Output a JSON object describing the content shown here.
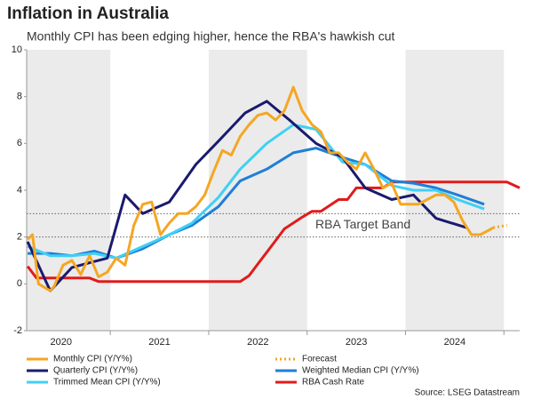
{
  "chart_data": {
    "type": "line",
    "title": "Inflation in Australia",
    "subtitle": "Monthly CPI has been edging higher, hence the RBA's hawkish cut",
    "source": "Source: LSEG Datastream",
    "annotation": "RBA Target Band",
    "reference_lines": [
      2,
      3
    ],
    "band_color": "#ebebeb",
    "xlim": [
      2020.15,
      2025.16
    ],
    "xticks": [
      {
        "value": 2020.5,
        "label": "2020"
      },
      {
        "value": 2021.5,
        "label": "2021"
      },
      {
        "value": 2022.5,
        "label": "2022"
      },
      {
        "value": 2023.5,
        "label": "2023"
      },
      {
        "value": 2024.5,
        "label": "2024"
      }
    ],
    "ylim": [
      -2,
      10
    ],
    "yticks": [
      -2,
      0,
      2,
      4,
      6,
      8,
      10
    ],
    "series": [
      {
        "name": "Monthly CPI (Y/Y%)",
        "color": "#f5a623",
        "x": [
          2020.16,
          2020.21,
          2020.27,
          2020.39,
          2020.43,
          2020.52,
          2020.61,
          2020.7,
          2020.79,
          2020.88,
          2020.97,
          2021.06,
          2021.15,
          2021.24,
          2021.33,
          2021.42,
          2021.51,
          2021.6,
          2021.69,
          2021.78,
          2021.87,
          2021.96,
          2022.05,
          2022.14,
          2022.23,
          2022.32,
          2022.41,
          2022.5,
          2022.59,
          2022.68,
          2022.77,
          2022.86,
          2022.95,
          2023.05,
          2023.14,
          2023.23,
          2023.32,
          2023.41,
          2023.5,
          2023.59,
          2023.68,
          2023.77,
          2023.86,
          2023.95,
          2024.04,
          2024.13,
          2024.22,
          2024.31,
          2024.4,
          2024.49,
          2024.58,
          2024.67,
          2024.76,
          2024.85,
          2024.89
        ],
        "values": [
          1.9,
          2.1,
          0.0,
          -0.3,
          -0.1,
          0.8,
          1.0,
          0.4,
          1.2,
          0.3,
          0.5,
          1.1,
          0.8,
          2.5,
          3.4,
          3.5,
          2.1,
          2.6,
          3.0,
          3.0,
          3.3,
          3.8,
          4.8,
          5.7,
          5.5,
          6.3,
          6.8,
          7.2,
          7.3,
          7.0,
          7.4,
          8.4,
          7.4,
          6.8,
          6.5,
          5.6,
          5.6,
          5.2,
          4.9,
          5.6,
          4.9,
          4.1,
          4.3,
          3.4,
          3.4,
          3.4,
          3.6,
          3.8,
          3.8,
          3.5,
          2.7,
          2.1,
          2.1,
          2.3,
          2.4
        ]
      },
      {
        "name": "Forecast",
        "color": "#f5a623",
        "dashed": true,
        "x": [
          2024.89,
          2025.03
        ],
        "values": [
          2.4,
          2.5
        ]
      },
      {
        "name": "Quarterly CPI (Y/Y%)",
        "color": "#1a1a6e",
        "x": [
          2020.16,
          2020.39,
          2020.61,
          2020.79,
          2020.97,
          2021.15,
          2021.33,
          2021.6,
          2021.87,
          2022.1,
          2022.37,
          2022.59,
          2022.82,
          2023.09,
          2023.36,
          2023.59,
          2023.86,
          2024.08,
          2024.31,
          2024.62
        ],
        "values": [
          1.8,
          -0.3,
          0.7,
          0.9,
          1.1,
          3.8,
          3.0,
          3.5,
          5.1,
          6.1,
          7.3,
          7.8,
          7.0,
          6.0,
          5.4,
          4.1,
          3.6,
          3.8,
          2.8,
          2.4
        ]
      },
      {
        "name": "Weighted Median CPI (Y/Y%)",
        "color": "#1e7fd8",
        "x": [
          2020.16,
          2020.39,
          2020.61,
          2020.84,
          2021.06,
          2021.33,
          2021.6,
          2021.83,
          2022.1,
          2022.32,
          2022.59,
          2022.86,
          2023.09,
          2023.36,
          2023.59,
          2023.86,
          2024.08,
          2024.31,
          2024.53,
          2024.8
        ],
        "values": [
          1.3,
          1.3,
          1.2,
          1.4,
          1.1,
          1.5,
          2.1,
          2.5,
          3.3,
          4.4,
          4.9,
          5.6,
          5.8,
          5.4,
          5.1,
          4.4,
          4.3,
          4.1,
          3.8,
          3.4
        ]
      },
      {
        "name": "Trimmed Mean CPI (Y/Y%)",
        "color": "#3fd0f5",
        "x": [
          2020.16,
          2020.39,
          2020.61,
          2020.84,
          2021.06,
          2021.33,
          2021.6,
          2021.83,
          2022.1,
          2022.32,
          2022.59,
          2022.86,
          2023.09,
          2023.36,
          2023.59,
          2023.86,
          2024.08,
          2024.31,
          2024.53,
          2024.8
        ],
        "values": [
          1.6,
          1.2,
          1.2,
          1.3,
          1.1,
          1.6,
          2.1,
          2.6,
          3.7,
          4.9,
          6.0,
          6.8,
          6.6,
          5.2,
          5.1,
          4.2,
          4.0,
          4.0,
          3.6,
          3.2
        ]
      },
      {
        "name": "RBA Cash Rate",
        "color": "#e01b1b",
        "x": [
          2020.16,
          2020.25,
          2020.79,
          2020.88,
          2022.32,
          2022.41,
          2022.5,
          2022.59,
          2022.68,
          2022.77,
          2022.86,
          2022.95,
          2023.05,
          2023.14,
          2023.23,
          2023.32,
          2023.41,
          2023.5,
          2023.77,
          2023.86,
          2025.03,
          2025.16
        ],
        "values": [
          0.75,
          0.25,
          0.25,
          0.1,
          0.1,
          0.35,
          0.85,
          1.35,
          1.85,
          2.35,
          2.6,
          2.85,
          3.1,
          3.1,
          3.35,
          3.6,
          3.6,
          4.1,
          4.1,
          4.35,
          4.35,
          4.1
        ]
      }
    ]
  }
}
